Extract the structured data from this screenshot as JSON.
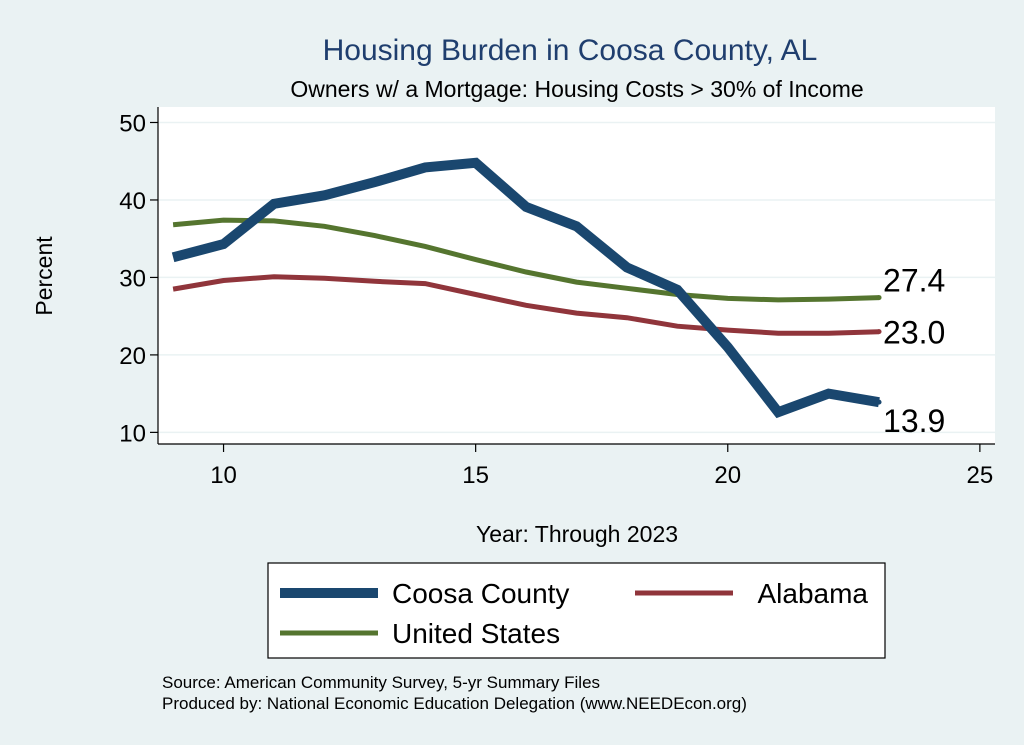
{
  "chart_data": {
    "type": "line",
    "title": "Housing Burden in Coosa County, AL",
    "subtitle": "Owners w/ a Mortgage: Housing Costs > 30% of Income",
    "xlabel": "Year: Through 2023",
    "ylabel": "Percent",
    "xlim": [
      8.7,
      25.3
    ],
    "ylim": [
      8.5,
      52
    ],
    "x_ticks": [
      10,
      15,
      20,
      25
    ],
    "y_ticks": [
      10,
      20,
      30,
      40,
      50
    ],
    "grid": true,
    "x": [
      9,
      10,
      11,
      12,
      13,
      14,
      15,
      16,
      17,
      18,
      19,
      20,
      21,
      22,
      23
    ],
    "series": [
      {
        "name": "Coosa County",
        "color": "#1a476f",
        "values": [
          32.6,
          34.3,
          39.5,
          40.6,
          42.3,
          44.2,
          44.8,
          39.1,
          36.6,
          31.3,
          28.4,
          21.0,
          12.6,
          15.0,
          13.9
        ],
        "end_label": "13.9"
      },
      {
        "name": "Alabama",
        "color": "#90353b",
        "values": [
          28.5,
          29.6,
          30.1,
          29.9,
          29.5,
          29.2,
          27.8,
          26.4,
          25.4,
          24.8,
          23.7,
          23.2,
          22.8,
          22.8,
          23.0
        ],
        "end_label": "23.0"
      },
      {
        "name": "United States",
        "color": "#55752f",
        "values": [
          36.8,
          37.4,
          37.3,
          36.6,
          35.4,
          34.0,
          32.3,
          30.7,
          29.4,
          28.6,
          27.8,
          27.3,
          27.1,
          27.2,
          27.4
        ],
        "end_label": "27.4"
      }
    ],
    "source_lines": [
      "Source: American Community Survey, 5-yr Summary Files",
      "Produced by: National Economic Education Delegation (www.NEEDEcon.org)"
    ]
  }
}
